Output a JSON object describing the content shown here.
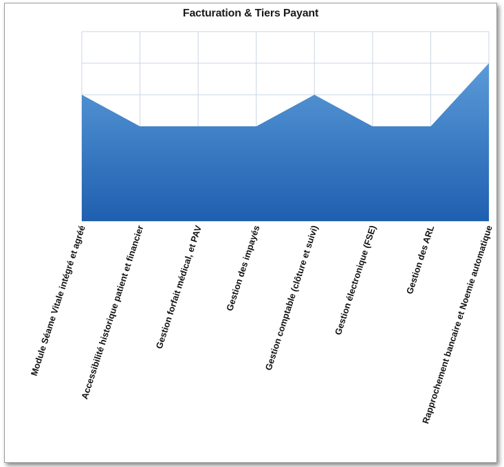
{
  "chart_data": {
    "type": "area",
    "title": "Facturation & Tiers Payant",
    "xlabel": "",
    "ylabel": "",
    "categories": [
      "Module Séame Vitale intégré et agréé",
      "Accessibilité historique patient et financier",
      "Gestion forfait médical, et PAV",
      "Gestion des impayés",
      "Gestion comptable (clôture et suivi)",
      "Gestion électronique (FSE)",
      "Gestion des ARL",
      "Rapprochement bancaire et Noemie automatique"
    ],
    "series": [
      {
        "values": [
          3,
          2,
          2,
          2,
          3,
          2,
          2,
          4
        ]
      }
    ],
    "ylim": [
      -1,
      5
    ],
    "grid": true,
    "color_top": "#5b9bd8",
    "color_bottom": "#1f5fb0",
    "grid_color": "#c9d6e3"
  }
}
